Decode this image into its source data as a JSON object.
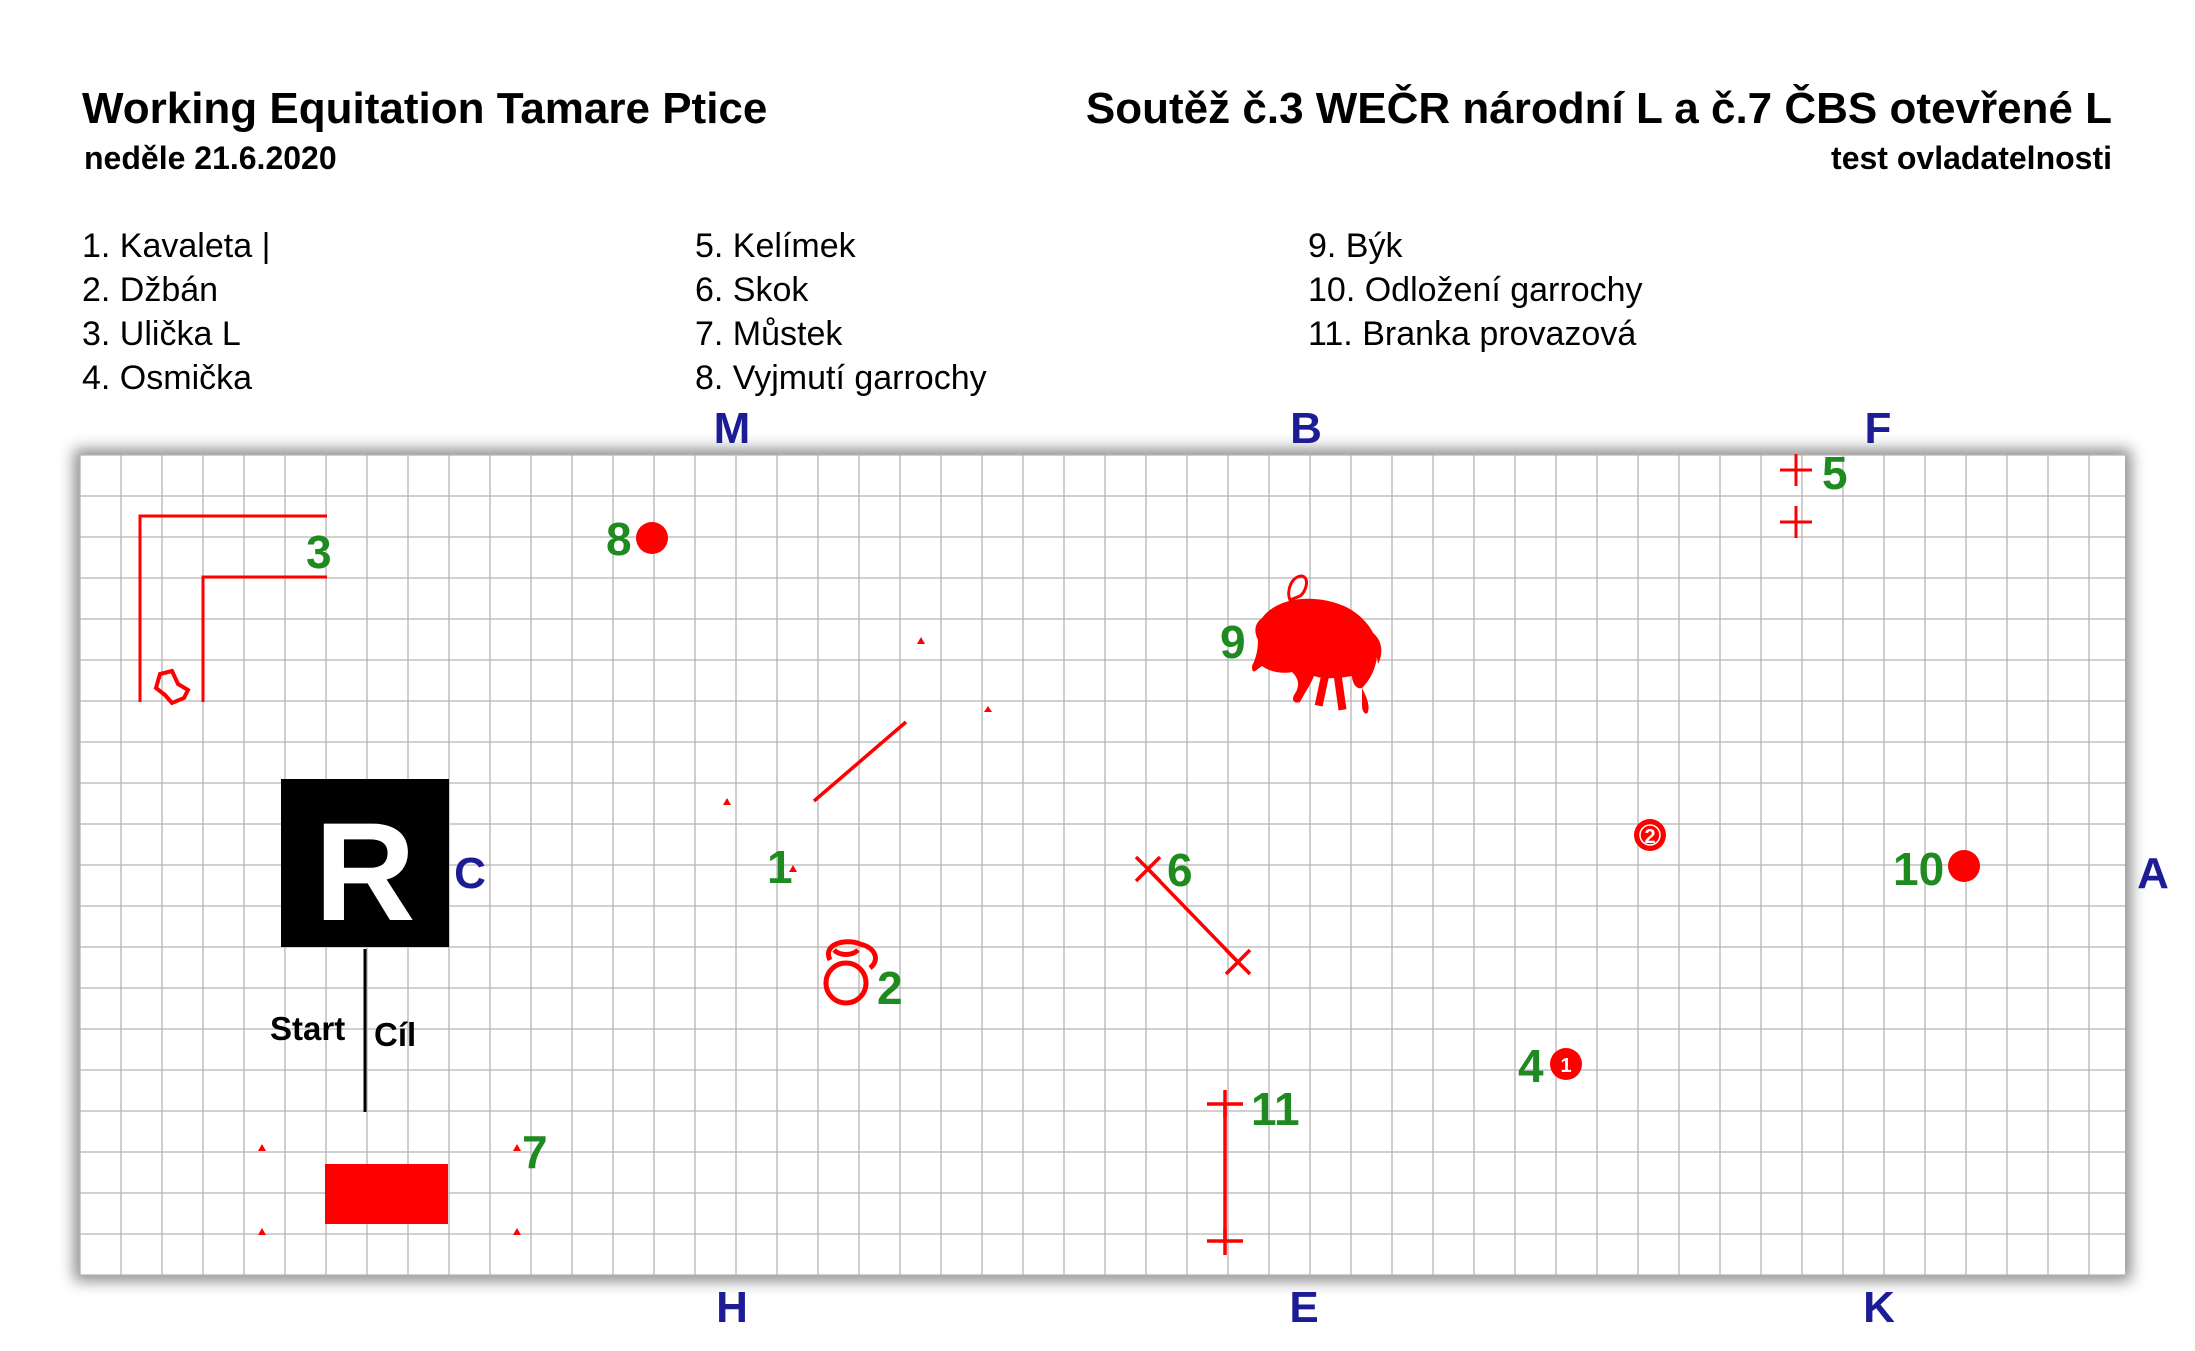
{
  "header": {
    "title_left": "Working Equitation Tamare Ptice",
    "date": "neděle 21.6.2020",
    "title_right": "Soutěž č.3 WEČR národní L a č.7 ČBS otevřené L",
    "subtitle_right": "test ovladatelnosti"
  },
  "legend": {
    "col1": [
      "1. Kavaleta |",
      "2. Džbán",
      "3. Ulička L",
      "4. Osmička"
    ],
    "col2": [
      "5. Kelímek",
      "6. Skok",
      "7. Můstek",
      "8. Vyjmutí garrochy"
    ],
    "col3": [
      "9. Býk",
      "10. Odložení garrochy",
      "11. Branka provazová"
    ]
  },
  "arena": {
    "letters": {
      "M": "M",
      "B": "B",
      "F": "F",
      "H": "H",
      "E": "E",
      "K": "K",
      "C": "C",
      "A": "A"
    },
    "judge_box": "R",
    "start": "Start",
    "finish": "Cíl",
    "obstacle_numbers": {
      "n1": "1",
      "n2": "2",
      "n3": "3",
      "n4": "4",
      "n5": "5",
      "n6": "6",
      "n7": "7",
      "n8": "8",
      "n9": "9",
      "n10": "10",
      "n11": "11"
    },
    "marker_badges": {
      "b1": "1",
      "b2": "2"
    },
    "colors": {
      "grid": "#b4b4b4",
      "obstacle": "#ff0000",
      "number": "#1f8a1f",
      "letter": "#1c1c96"
    }
  }
}
